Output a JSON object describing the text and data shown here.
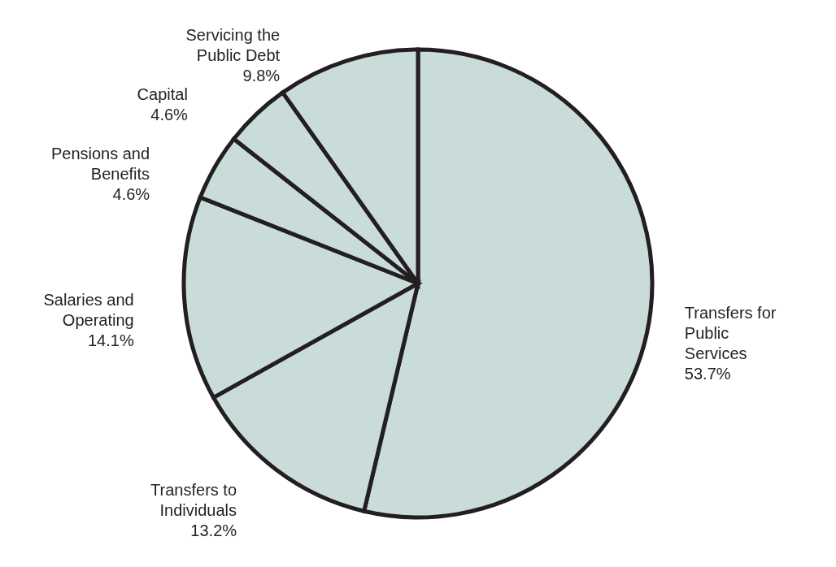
{
  "chart_data": {
    "type": "pie",
    "categories": [
      "Transfers for Public Services",
      "Transfers to Individuals",
      "Salaries and Operating",
      "Pensions and Benefits",
      "Capital",
      "Servicing the Public Debt"
    ],
    "values": [
      53.7,
      13.2,
      14.1,
      4.6,
      4.6,
      9.8
    ],
    "colors": [
      "#c9dcda",
      "#c9dcda",
      "#c9dcda",
      "#c9dcda",
      "#c9dcda",
      "#c9dcda"
    ],
    "value_labels": [
      "53.7%",
      "13.2%",
      "14.1%",
      "4.6%",
      "4.6%",
      "9.8%"
    ]
  }
}
